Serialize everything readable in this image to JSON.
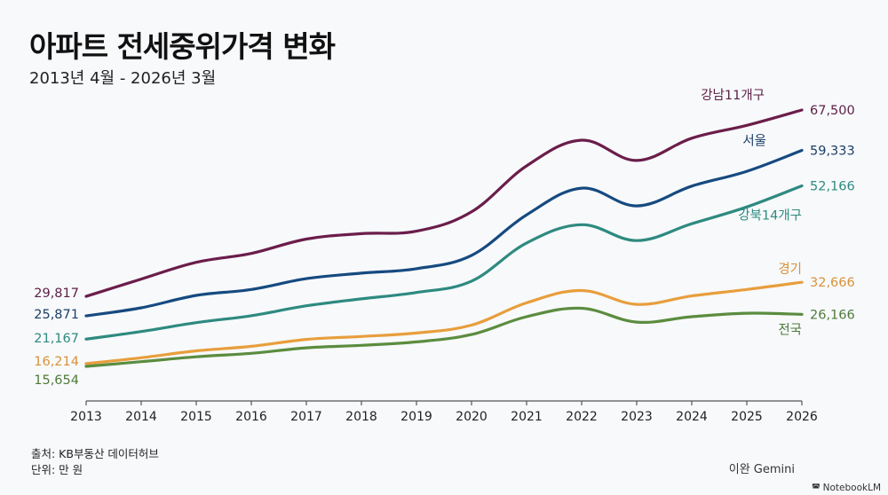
{
  "header": {
    "title": "아파트 전세중위가격 변화",
    "subtitle": "2013년 4월 - 2026년 3월"
  },
  "footer": {
    "source": "출처: KB부동산 데이터허브",
    "unit": "단위: 만 원",
    "credit": "이완 Gemini",
    "watermark": "NotebookLM",
    "watermark_icon": "notebooklm-logo-icon"
  },
  "chart_data": {
    "type": "line",
    "title": "아파트 전세중위가격 변화",
    "subtitle": "2013년 4월 - 2026년 3월",
    "xlabel": "",
    "ylabel": "만 원",
    "x": [
      "2013",
      "2014",
      "2015",
      "2016",
      "2017",
      "2018",
      "2019",
      "2020",
      "2021",
      "2022",
      "2023",
      "2024",
      "2025",
      "2026"
    ],
    "ylim": [
      12000,
      70000
    ],
    "grid": false,
    "legend": "direct-labels-right",
    "series": [
      {
        "name": "강남11개구",
        "color": "#6b1d4a",
        "start_label": "29,817",
        "end_label": "67,500",
        "values": [
          29817,
          33300,
          36700,
          38500,
          41400,
          42500,
          43000,
          46900,
          56200,
          61400,
          57300,
          61800,
          64400,
          67500
        ]
      },
      {
        "name": "서울",
        "color": "#164a80",
        "start_label": "25,871",
        "end_label": "59,333",
        "values": [
          25871,
          27500,
          30000,
          31200,
          33400,
          34500,
          35400,
          38100,
          46300,
          51700,
          48100,
          52100,
          55100,
          59333
        ]
      },
      {
        "name": "강북14개구",
        "color": "#2e8a80",
        "start_label": "21,167",
        "end_label": "52,166",
        "values": [
          21167,
          22700,
          24500,
          25900,
          27900,
          29300,
          30600,
          32900,
          40600,
          44300,
          41100,
          44500,
          47900,
          52166
        ]
      },
      {
        "name": "경기",
        "color": "#e89e3c",
        "start_label": "16,214",
        "end_label": "32,666",
        "values": [
          16214,
          17400,
          18800,
          19700,
          21100,
          21700,
          22400,
          24000,
          28500,
          31000,
          28200,
          29900,
          31200,
          32666
        ]
      },
      {
        "name": "전국",
        "color": "#5b8c3f",
        "start_label": "15,654",
        "end_label": "26,166",
        "values": [
          15654,
          16600,
          17600,
          18300,
          19400,
          19900,
          20600,
          22100,
          25700,
          27400,
          24600,
          25700,
          26400,
          26166
        ]
      }
    ]
  }
}
